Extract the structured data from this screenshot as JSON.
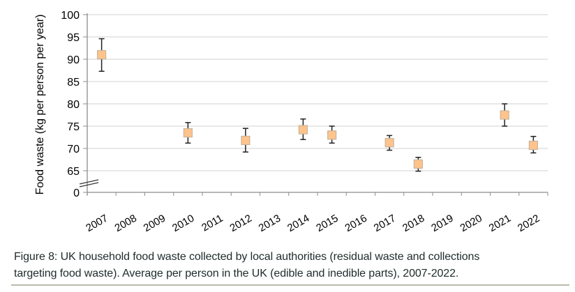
{
  "chart_data": {
    "type": "scatter",
    "title": "",
    "xlabel": "",
    "ylabel": "Food waste (kg per person per year)",
    "categories": [
      "2007",
      "2008",
      "2009",
      "2010",
      "2011",
      "2012",
      "2013",
      "2014",
      "2015",
      "2016",
      "2017",
      "2018",
      "2019",
      "2020",
      "2021",
      "2022"
    ],
    "y_ticks": [
      "0",
      "65",
      "70",
      "75",
      "80",
      "85",
      "90",
      "95",
      "100"
    ],
    "ylim": [
      65,
      100
    ],
    "axis_break": true,
    "grid": true,
    "series": [
      {
        "name": "Food waste",
        "points": [
          {
            "x": "2007",
            "y": 91.0,
            "low": 87.3,
            "high": 94.6
          },
          {
            "x": "2010",
            "y": 73.5,
            "low": 71.2,
            "high": 75.8
          },
          {
            "x": "2012",
            "y": 71.8,
            "low": 69.2,
            "high": 74.5
          },
          {
            "x": "2014",
            "y": 74.2,
            "low": 72.0,
            "high": 76.6
          },
          {
            "x": "2015",
            "y": 73.0,
            "low": 71.2,
            "high": 75.0
          },
          {
            "x": "2017",
            "y": 71.3,
            "low": 69.6,
            "high": 72.9
          },
          {
            "x": "2018",
            "y": 66.5,
            "low": 64.9,
            "high": 68.0
          },
          {
            "x": "2021",
            "y": 77.5,
            "low": 75.0,
            "high": 80.0
          },
          {
            "x": "2022",
            "y": 70.7,
            "low": 69.0,
            "high": 72.7
          }
        ]
      }
    ],
    "colors": {
      "marker_fill": "#ffc48c",
      "marker_stroke": "#c9b49a",
      "grid": "#d9d9d9",
      "axis": "#8c8c8c",
      "errorbar": "#222222"
    }
  },
  "caption": {
    "line1": "Figure 8: UK household food waste collected by local authorities (residual waste and collections",
    "line2": "targeting food waste). Average per person in the UK (edible and inedible parts), 2007-2022."
  }
}
